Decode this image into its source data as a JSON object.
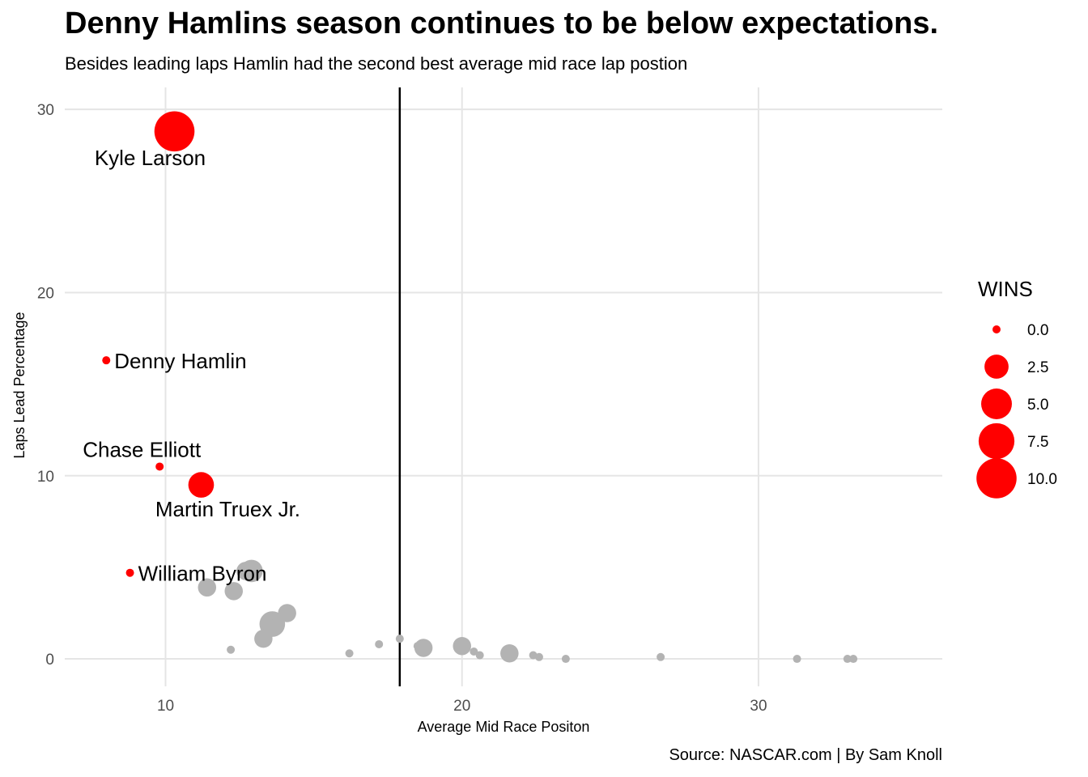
{
  "chart_data": {
    "type": "scatter",
    "title": "Denny Hamlins season continues to be below expectations.",
    "subtitle": "Besides leading laps Hamlin had the second best average mid race lap postion",
    "caption": "Source: NASCAR.com | By Sam Knoll",
    "xlabel": "Average Mid Race Positon",
    "ylabel": "Laps Lead Percentage",
    "xlim": [
      6.6,
      36.2
    ],
    "ylim": [
      -1.5,
      31.2
    ],
    "x_ticks": [
      10,
      20,
      30
    ],
    "y_ticks": [
      0,
      10,
      20,
      30
    ],
    "grid": true,
    "vline_x": 17.9,
    "size_legend": {
      "title": "WINS",
      "placement": "right",
      "values": [
        0.0,
        2.5,
        5.0,
        7.5,
        10.0
      ],
      "labels": [
        "0.0",
        "2.5",
        "5.0",
        "7.5",
        "10.0"
      ]
    },
    "highlight_color": "#ff0000",
    "other_color": "#b3b3b3",
    "points_highlighted": [
      {
        "label": "Kyle Larson",
        "x": 10.3,
        "y": 28.8,
        "wins": 10,
        "label_pos": "below-left"
      },
      {
        "label": "Denny Hamlin",
        "x": 8.0,
        "y": 16.3,
        "wins": 0,
        "label_pos": "right"
      },
      {
        "label": "Chase Elliott",
        "x": 9.8,
        "y": 10.5,
        "wins": 0,
        "label_pos": "above-left"
      },
      {
        "label": "Martin Truex Jr.",
        "x": 11.2,
        "y": 9.5,
        "wins": 3,
        "label_pos": "below-right"
      },
      {
        "label": "William Byron",
        "x": 8.8,
        "y": 4.7,
        "wins": 0,
        "label_pos": "right"
      }
    ],
    "points_other": [
      {
        "x": 12.9,
        "y": 4.8,
        "wins": 2
      },
      {
        "x": 12.7,
        "y": 4.8,
        "wins": 1
      },
      {
        "x": 11.4,
        "y": 3.9,
        "wins": 1
      },
      {
        "x": 12.3,
        "y": 3.7,
        "wins": 1
      },
      {
        "x": 14.1,
        "y": 2.5,
        "wins": 1
      },
      {
        "x": 13.6,
        "y": 1.9,
        "wins": 3
      },
      {
        "x": 13.5,
        "y": 2.3,
        "wins": 0
      },
      {
        "x": 13.3,
        "y": 1.1,
        "wins": 1
      },
      {
        "x": 12.2,
        "y": 0.5,
        "wins": 0
      },
      {
        "x": 16.2,
        "y": 0.3,
        "wins": 0
      },
      {
        "x": 17.2,
        "y": 0.8,
        "wins": 0
      },
      {
        "x": 17.9,
        "y": 1.1,
        "wins": 0
      },
      {
        "x": 18.5,
        "y": 0.7,
        "wins": 0
      },
      {
        "x": 18.7,
        "y": 0.6,
        "wins": 1
      },
      {
        "x": 20.0,
        "y": 0.7,
        "wins": 1
      },
      {
        "x": 20.4,
        "y": 0.4,
        "wins": 0
      },
      {
        "x": 20.6,
        "y": 0.2,
        "wins": 0
      },
      {
        "x": 21.5,
        "y": 0.1,
        "wins": 0
      },
      {
        "x": 21.6,
        "y": 0.3,
        "wins": 1
      },
      {
        "x": 22.4,
        "y": 0.2,
        "wins": 0
      },
      {
        "x": 22.6,
        "y": 0.1,
        "wins": 0
      },
      {
        "x": 23.5,
        "y": 0.0,
        "wins": 0
      },
      {
        "x": 26.7,
        "y": 0.1,
        "wins": 0
      },
      {
        "x": 31.3,
        "y": 0.0,
        "wins": 0
      },
      {
        "x": 33.0,
        "y": 0.0,
        "wins": 0
      },
      {
        "x": 33.2,
        "y": 0.0,
        "wins": 0
      }
    ]
  }
}
